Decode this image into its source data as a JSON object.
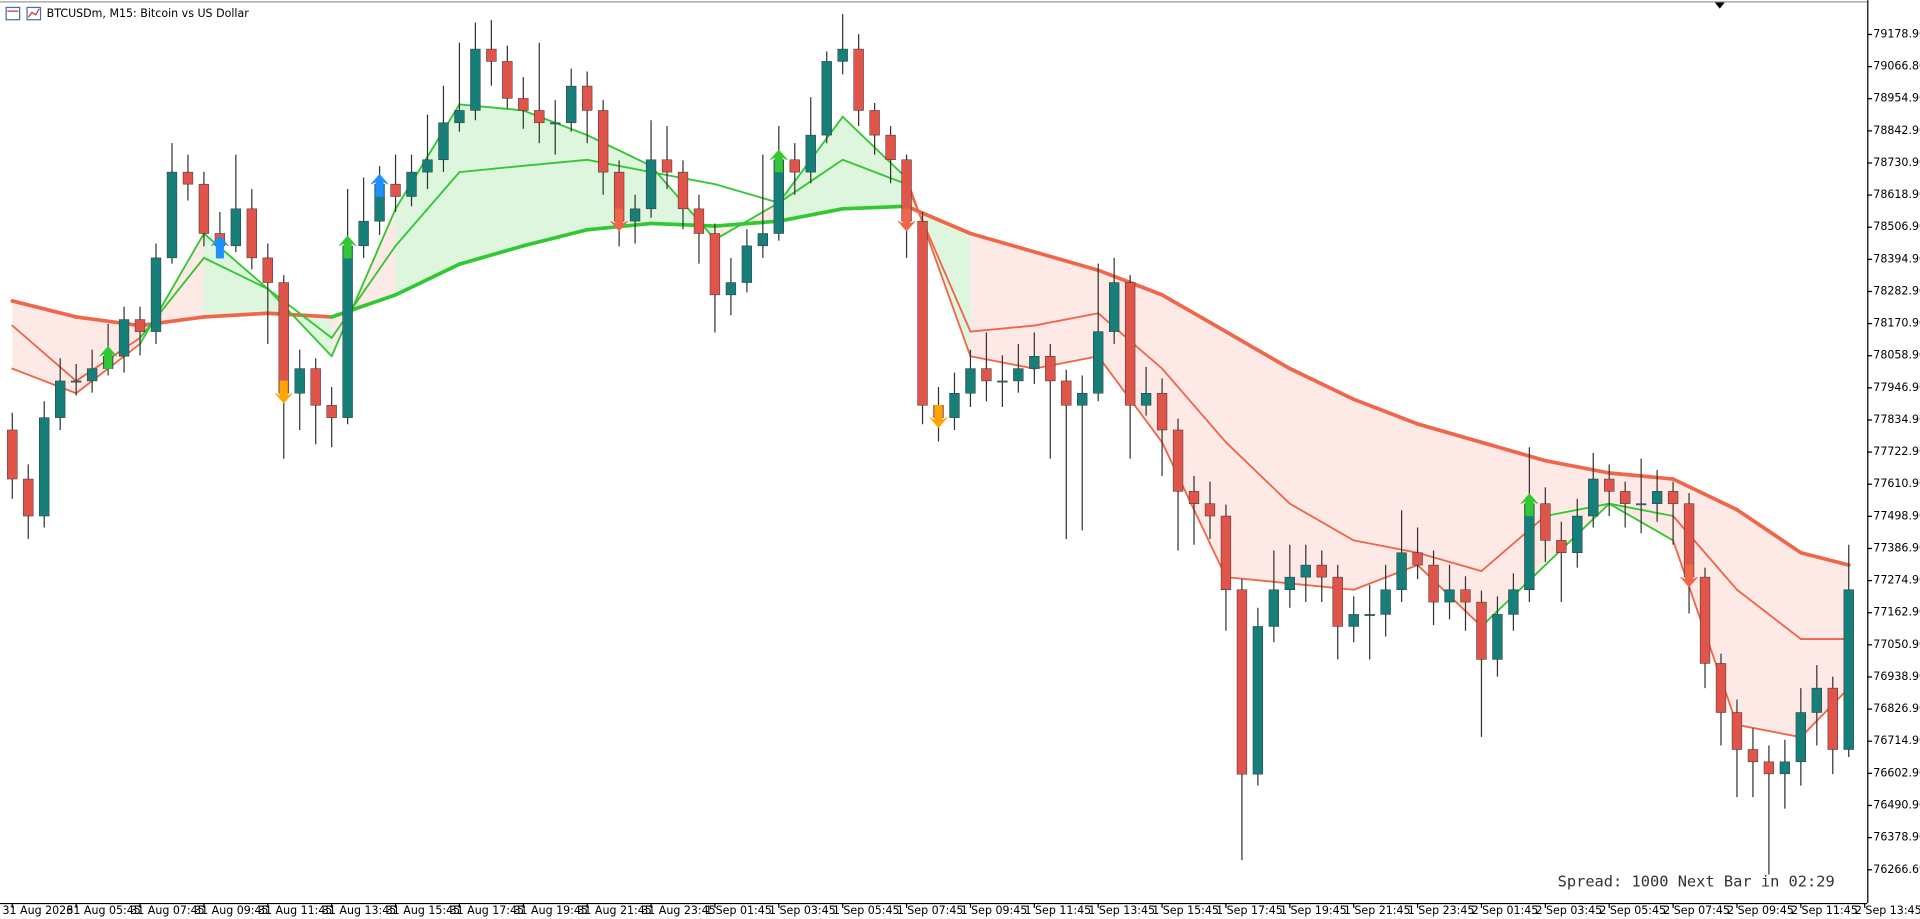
{
  "chart_data": {
    "type": "candlestick",
    "title": "BTCUSDm, M15:  Bitcoin vs US Dollar",
    "annotation": "Spread: 1000 Next Bar in 02:29",
    "up_color": "#177f7a",
    "down_color": "#e0544a",
    "wick_color": "#333333",
    "open": [
      77800,
      77629,
      77500,
      77843,
      77971,
      77971,
      78014,
      78057,
      78185,
      78143,
      78400,
      78699,
      78657,
      78485,
      78442,
      78571,
      78400,
      78314,
      77928,
      78014,
      77886,
      77843,
      78442,
      78528,
      78657,
      78614,
      78699,
      78742,
      78871,
      78914,
      79128,
      79085,
      78956,
      78914,
      78871,
      78871,
      78999,
      78914,
      78699,
      78528,
      78571,
      78742,
      78699,
      78571,
      78485,
      78271,
      78314,
      78442,
      78485,
      78742,
      78699,
      78828,
      79085,
      79128,
      78914,
      78828,
      78742,
      78528,
      77886,
      77843,
      77928,
      78014,
      77971,
      77971,
      78014,
      78057,
      77971,
      77886,
      77928,
      78143,
      78314,
      77886,
      77928,
      77800,
      77586,
      77543,
      77500,
      77243,
      76600,
      77115,
      77243,
      77287,
      77329,
      77287,
      77115,
      77157,
      77157,
      77243,
      77372,
      77329,
      77200,
      77243,
      77200,
      77000,
      77157,
      77243,
      77543,
      77415,
      77372,
      77500,
      77629,
      77586,
      77543,
      77543,
      77586,
      77543,
      77287,
      76986,
      76815,
      76686,
      76643,
      76601,
      76643,
      76815,
      76900,
      76686
    ],
    "high": [
      77860,
      77680,
      77900,
      78050,
      78030,
      78080,
      78170,
      78230,
      78230,
      78450,
      78800,
      78760,
      78700,
      78560,
      78760,
      78640,
      78450,
      78340,
      78080,
      78050,
      77950,
      78640,
      78680,
      78720,
      78760,
      78760,
      78900,
      79000,
      79150,
      79220,
      79230,
      79140,
      79030,
      79150,
      78950,
      79060,
      79050,
      78950,
      78740,
      78620,
      78880,
      78860,
      78740,
      78620,
      78520,
      78400,
      78500,
      78760,
      78860,
      78800,
      78960,
      79120,
      79250,
      79180,
      78940,
      78860,
      78760,
      78560,
      77950,
      78000,
      78080,
      78140,
      78060,
      78100,
      78140,
      78100,
      78010,
      77990,
      78380,
      78400,
      78340,
      78020,
      77980,
      77840,
      77640,
      77620,
      77540,
      77280,
      77180,
      77380,
      77400,
      77400,
      77380,
      77330,
      77220,
      77260,
      77330,
      77520,
      77460,
      77380,
      77330,
      77290,
      77240,
      77220,
      77300,
      77740,
      77600,
      77480,
      77560,
      77720,
      77680,
      77620,
      77700,
      77660,
      77620,
      77580,
      77320,
      77020,
      76860,
      76760,
      76700,
      76720,
      76900,
      76980,
      76940,
      77400
    ],
    "low": [
      77560,
      77420,
      77460,
      77800,
      77920,
      77930,
      77990,
      78000,
      78060,
      78100,
      78380,
      78600,
      78440,
      78400,
      78420,
      78360,
      78100,
      77700,
      77800,
      77750,
      77740,
      77820,
      78400,
      78480,
      78560,
      78580,
      78640,
      78700,
      78840,
      78880,
      79000,
      78920,
      78850,
      78800,
      78760,
      78840,
      78800,
      78620,
      78440,
      78450,
      78540,
      78640,
      78500,
      78380,
      78140,
      78200,
      78280,
      78400,
      78460,
      78620,
      78660,
      78800,
      79040,
      78860,
      78760,
      78660,
      78400,
      77820,
      77760,
      77800,
      77880,
      77900,
      77880,
      77930,
      77960,
      77700,
      77420,
      77450,
      77900,
      78100,
      77700,
      77850,
      77640,
      77380,
      77400,
      77420,
      77100,
      76300,
      76560,
      77060,
      77180,
      77200,
      77200,
      77000,
      77060,
      77000,
      77080,
      77200,
      77280,
      77120,
      77140,
      77100,
      76730,
      76940,
      77100,
      77200,
      77340,
      77200,
      77320,
      77460,
      77500,
      77460,
      77440,
      77480,
      77400,
      77160,
      76900,
      76700,
      76520,
      76520,
      76250,
      76480,
      76560,
      76700,
      76600,
      76660
    ],
    "close": [
      77629,
      77500,
      77843,
      77971,
      77971,
      78014,
      78057,
      78185,
      78143,
      78400,
      78699,
      78657,
      78485,
      78442,
      78571,
      78400,
      78314,
      77928,
      78014,
      77886,
      77843,
      78442,
      78528,
      78657,
      78614,
      78699,
      78742,
      78871,
      78914,
      79128,
      79085,
      78956,
      78914,
      78871,
      78871,
      78999,
      78914,
      78699,
      78528,
      78571,
      78742,
      78699,
      78571,
      78485,
      78271,
      78314,
      78442,
      78485,
      78742,
      78699,
      78828,
      79085,
      79128,
      78914,
      78828,
      78742,
      78528,
      77886,
      77843,
      77928,
      78014,
      77971,
      77971,
      78014,
      78057,
      77971,
      77886,
      77928,
      78143,
      78314,
      77886,
      77928,
      77800,
      77586,
      77543,
      77500,
      77243,
      76600,
      77115,
      77243,
      77287,
      77329,
      77287,
      77115,
      77157,
      77157,
      77243,
      77372,
      77329,
      77200,
      77243,
      77200,
      77000,
      77157,
      77243,
      77543,
      77415,
      77372,
      77500,
      77629,
      77586,
      77543,
      77543,
      77586,
      77543,
      77287,
      76986,
      76815,
      76686,
      76643,
      76601,
      76643,
      76815,
      76900,
      76686,
      77243
    ],
    "ylim": [
      76151,
      79256
    ],
    "yticks": [
      {
        "value": 79178.9,
        "label": "79178.90"
      },
      {
        "value": 79066.8,
        "label": "79066.80"
      },
      {
        "value": 78954.9,
        "label": "78954.90"
      },
      {
        "value": 78842.9,
        "label": "78842.90"
      },
      {
        "value": 78730.9,
        "label": "78730.90"
      },
      {
        "value": 78618.9,
        "label": "78618.90"
      },
      {
        "value": 78506.9,
        "label": "78506.90"
      },
      {
        "value": 78394.9,
        "label": "78394.90"
      },
      {
        "value": 78282.9,
        "label": "78282.90"
      },
      {
        "value": 78170.9,
        "label": "78170.90"
      },
      {
        "value": 78058.9,
        "label": "78058.90"
      },
      {
        "value": 77946.9,
        "label": "77946.90"
      },
      {
        "value": 77834.9,
        "label": "77834.90"
      },
      {
        "value": 77722.9,
        "label": "77722.90"
      },
      {
        "value": 77610.9,
        "label": "77610.90"
      },
      {
        "value": 77498.9,
        "label": "77498.90"
      },
      {
        "value": 77386.9,
        "label": "77386.90"
      },
      {
        "value": 77274.9,
        "label": "77274.90"
      },
      {
        "value": 77162.9,
        "label": "77162.90"
      },
      {
        "value": 77050.9,
        "label": "77050.90"
      },
      {
        "value": 76938.9,
        "label": "76938.90"
      },
      {
        "value": 76826.9,
        "label": "76826.90"
      },
      {
        "value": 76714.9,
        "label": "76714.90"
      },
      {
        "value": 76602.9,
        "label": "76602.90"
      },
      {
        "value": 76490.9,
        "label": "76490.90"
      },
      {
        "value": 76378.9,
        "label": "76378.90"
      },
      {
        "value": 76266.69,
        "label": "76266.69"
      }
    ],
    "xticks": [
      {
        "value": 0,
        "label": "31 Aug 2026"
      },
      {
        "value": 4,
        "label": "31 Aug 05:45"
      },
      {
        "value": 8,
        "label": "31 Aug 07:45"
      },
      {
        "value": 12,
        "label": "31 Aug 09:45"
      },
      {
        "value": 16,
        "label": "31 Aug 11:45"
      },
      {
        "value": 20,
        "label": "31 Aug 13:45"
      },
      {
        "value": 24,
        "label": "31 Aug 15:45"
      },
      {
        "value": 28,
        "label": "31 Aug 17:45"
      },
      {
        "value": 32,
        "label": "31 Aug 19:45"
      },
      {
        "value": 36,
        "label": "31 Aug 21:45"
      },
      {
        "value": 40,
        "label": "31 Aug 23:45"
      },
      {
        "value": 44,
        "label": "1 Sep 01:45"
      },
      {
        "value": 48,
        "label": "1 Sep 03:45"
      },
      {
        "value": 52,
        "label": "1 Sep 05:45"
      },
      {
        "value": 56,
        "label": "1 Sep 07:45"
      },
      {
        "value": 60,
        "label": "1 Sep 09:45"
      },
      {
        "value": 64,
        "label": "1 Sep 11:45"
      },
      {
        "value": 68,
        "label": "1 Sep 13:45"
      },
      {
        "value": 72,
        "label": "1 Sep 15:45"
      },
      {
        "value": 76,
        "label": "1 Sep 17:45"
      },
      {
        "value": 80,
        "label": "1 Sep 19:45"
      },
      {
        "value": 84,
        "label": "1 Sep 21:45"
      },
      {
        "value": 88,
        "label": "1 Sep 23:45"
      },
      {
        "value": 92,
        "label": "2 Sep 01:45"
      },
      {
        "value": 96,
        "label": "2 Sep 03:45"
      },
      {
        "value": 100,
        "label": "2 Sep 05:45"
      },
      {
        "value": 104,
        "label": "2 Sep 07:45"
      },
      {
        "value": 108,
        "label": "2 Sep 09:45"
      },
      {
        "value": 112,
        "label": "2 Sep 11:45"
      },
      {
        "value": 116,
        "label": "2 Sep 13:45"
      }
    ],
    "ma": {
      "x": [
        0,
        4,
        8,
        12,
        16,
        20,
        24,
        28,
        32,
        36,
        40,
        44,
        48,
        52,
        56,
        60,
        64,
        68,
        72,
        76,
        80,
        84,
        88,
        92,
        96,
        100,
        104,
        108,
        112,
        115
      ],
      "series": [
        {
          "values": [
            78250,
            78194,
            78164,
            78194,
            78207,
            78194,
            78271,
            78378,
            78442,
            78498,
            78520,
            78511,
            78528,
            78571,
            78580,
            78485,
            78421,
            78357,
            78271,
            78143,
            78014,
            77907,
            77821,
            77757,
            77693,
            77650,
            77629,
            77522,
            77372,
            77329
          ],
          "colors": [
            "#f0664a",
            "#f0664a",
            "#f0664a",
            "#f0664a",
            "#f0664a",
            "#32c832",
            "#32c832",
            "#32c832",
            "#32c832",
            "#32c832",
            "#32c832",
            "#32c832",
            "#32c832",
            "#32c832",
            "#f0664a",
            "#f0664a",
            "#f0664a",
            "#f0664a",
            "#f0664a",
            "#f0664a",
            "#f0664a",
            "#f0664a",
            "#f0664a",
            "#f0664a",
            "#f0664a",
            "#f0664a",
            "#f0664a",
            "#f0664a",
            "#f0664a",
            "#f0664a"
          ]
        },
        {
          "values": [
            78164,
            77971,
            78121,
            78400,
            78292,
            78121,
            78442,
            78699,
            78721,
            78742,
            78699,
            78657,
            78592,
            78742,
            78657,
            78143,
            78164,
            78207,
            78014,
            77757,
            77543,
            77415,
            77372,
            77308,
            77500,
            77543,
            77500,
            77243,
            77071,
            77071
          ],
          "colors": [
            "#f0664a",
            "#f0664a",
            "#32c832",
            "#32c832",
            "#32c832",
            "#32c832",
            "#32c832",
            "#32c832",
            "#32c832",
            "#32c832",
            "#32c832",
            "#32c832",
            "#32c832",
            "#32c832",
            "#f0664a",
            "#f0664a",
            "#f0664a",
            "#f0664a",
            "#f0664a",
            "#f0664a",
            "#f0664a",
            "#f0664a",
            "#f0664a",
            "#f0664a",
            "#32c832",
            "#32c832",
            "#f0664a",
            "#f0664a",
            "#f0664a",
            "#f0664a"
          ]
        },
        {
          "values": [
            78014,
            77928,
            78100,
            78485,
            78292,
            78057,
            78571,
            78935,
            78914,
            78828,
            78721,
            78464,
            78592,
            78892,
            78678,
            78057,
            78014,
            78057,
            77757,
            77287,
            77265,
            77243,
            77329,
            77115,
            77329,
            77543,
            77415,
            76772,
            76729,
            76900
          ],
          "colors": [
            "#f0664a",
            "#f0664a",
            "#32c832",
            "#32c832",
            "#32c832",
            "#32c832",
            "#32c832",
            "#32c832",
            "#32c832",
            "#32c832",
            "#32c832",
            "#32c832",
            "#32c832",
            "#32c832",
            "#f0664a",
            "#f0664a",
            "#f0664a",
            "#f0664a",
            "#f0664a",
            "#f0664a",
            "#f0664a",
            "#f0664a",
            "#f0664a",
            "#32c832",
            "#32c832",
            "#32c832",
            "#f0664a",
            "#f0664a",
            "#f0664a",
            "#f0664a"
          ]
        }
      ]
    },
    "signals": [
      {
        "index": 6,
        "direction": "up",
        "color": "#32c832"
      },
      {
        "index": 13,
        "direction": "up",
        "color": "#1e90ff"
      },
      {
        "index": 17,
        "direction": "down",
        "color": "#ffa500"
      },
      {
        "index": 21,
        "direction": "up",
        "color": "#32c832"
      },
      {
        "index": 23,
        "direction": "up",
        "color": "#1e90ff"
      },
      {
        "index": 38,
        "direction": "down",
        "color": "#f0664a"
      },
      {
        "index": 48,
        "direction": "up",
        "color": "#32c832"
      },
      {
        "index": 56,
        "direction": "down",
        "color": "#f0664a"
      },
      {
        "index": 58,
        "direction": "down",
        "color": "#ffa500"
      },
      {
        "index": 95,
        "direction": "up",
        "color": "#32c832"
      },
      {
        "index": 105,
        "direction": "down",
        "color": "#f0664a"
      }
    ]
  }
}
